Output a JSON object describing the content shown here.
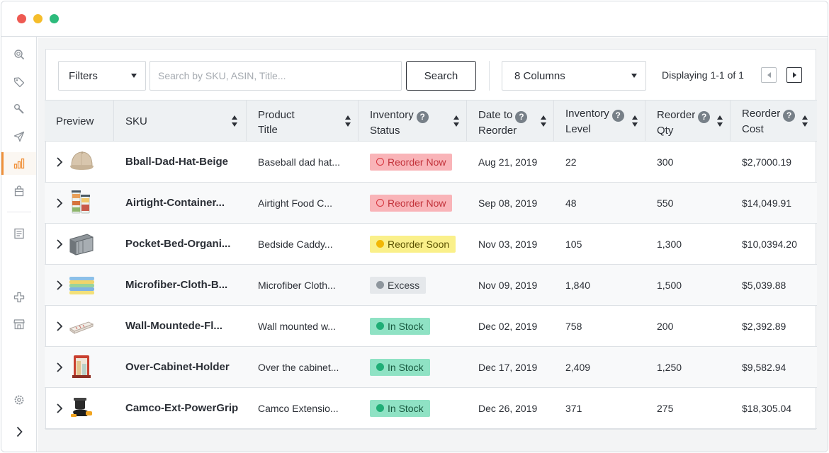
{
  "window": {
    "controls": [
      "close",
      "minimize",
      "maximize"
    ]
  },
  "sidebar": {
    "items": [
      {
        "icon": "search-icon"
      },
      {
        "icon": "tag-icon"
      },
      {
        "icon": "wrench-icon"
      },
      {
        "icon": "send-icon"
      },
      {
        "icon": "bar-chart-icon",
        "active": true
      },
      {
        "icon": "shopping-bag-icon"
      },
      {
        "icon": "document-icon"
      },
      {
        "icon": "plus-cross-icon"
      },
      {
        "icon": "store-icon"
      },
      {
        "icon": "settings-gear-icon"
      },
      {
        "icon": "chevron-right-icon"
      }
    ],
    "accent_color": "#f0913a"
  },
  "toolbar": {
    "filters_label": "Filters",
    "search_placeholder": "Search by SKU, ASIN, Title...",
    "search_button": "Search",
    "columns_label": "8 Columns",
    "displaying": "Displaying 1-1 of 1"
  },
  "table": {
    "headers": {
      "preview": "Preview",
      "sku": "SKU",
      "product_title_1": "Product",
      "product_title_2": "Title",
      "inventory_status_1": "Inventory",
      "inventory_status_2": "Status",
      "date_to_reorder_1": "Date to",
      "date_to_reorder_2": "Reorder",
      "inventory_level_1": "Inventory",
      "inventory_level_2": "Level",
      "reorder_qty_1": "Reorder",
      "reorder_qty_2": "Qty",
      "reorder_cost_1": "Reorder",
      "reorder_cost_2": "Cost",
      "help": "?"
    },
    "rows": [
      {
        "sku": "Bball-Dad-Hat-Beige",
        "title": "Baseball dad hat...",
        "status": "Reorder Now",
        "status_type": "now",
        "date": "Aug 21, 2019",
        "level": "22",
        "qty": "300",
        "cost": "$2,7000.19",
        "image": "beige-cap"
      },
      {
        "sku": "Airtight-Container...",
        "title": "Airtight Food C...",
        "status": "Reorder Now",
        "status_type": "now",
        "date": "Sep 08, 2019",
        "level": "48",
        "qty": "550",
        "cost": "$14,049.91",
        "image": "food-containers"
      },
      {
        "sku": "Pocket-Bed-Organi...",
        "title": "Bedside Caddy...",
        "status": "Reorder Soon",
        "status_type": "soon",
        "date": "Nov 03, 2019",
        "level": "105",
        "qty": "1,300",
        "cost": "$10,0394.20",
        "image": "bedside-caddy"
      },
      {
        "sku": "Microfiber-Cloth-B...",
        "title": "Microfiber Cloth...",
        "status": "Excess",
        "status_type": "excess",
        "date": "Nov 09, 2019",
        "level": "1,840",
        "qty": "1,500",
        "cost": "$5,039.88",
        "image": "microfiber-cloths"
      },
      {
        "sku": "Wall-Mountede-Fl...",
        "title": "Wall mounted w...",
        "status": "In Stock",
        "status_type": "instock",
        "date": "Dec 02, 2019",
        "level": "758",
        "qty": "200",
        "cost": "$2,392.89",
        "image": "wall-shelf"
      },
      {
        "sku": "Over-Cabinet-Holder",
        "title": "Over the cabinet...",
        "status": "In Stock",
        "status_type": "instock",
        "date": "Dec 17, 2019",
        "level": "2,409",
        "qty": "1,250",
        "cost": "$9,582.94",
        "image": "cabinet-holder"
      },
      {
        "sku": "Camco-Ext-PowerGrip",
        "title": "Camco Extensio...",
        "status": "In Stock",
        "status_type": "instock",
        "date": "Dec 26, 2019",
        "level": "371",
        "qty": "275",
        "cost": "$18,305.04",
        "image": "power-grip"
      }
    ]
  },
  "colors": {
    "reorder_now_bg": "#f9b4b8",
    "reorder_soon_bg": "#faf08a",
    "excess_bg": "#e5e8eb",
    "in_stock_bg": "#8fe2c4"
  }
}
